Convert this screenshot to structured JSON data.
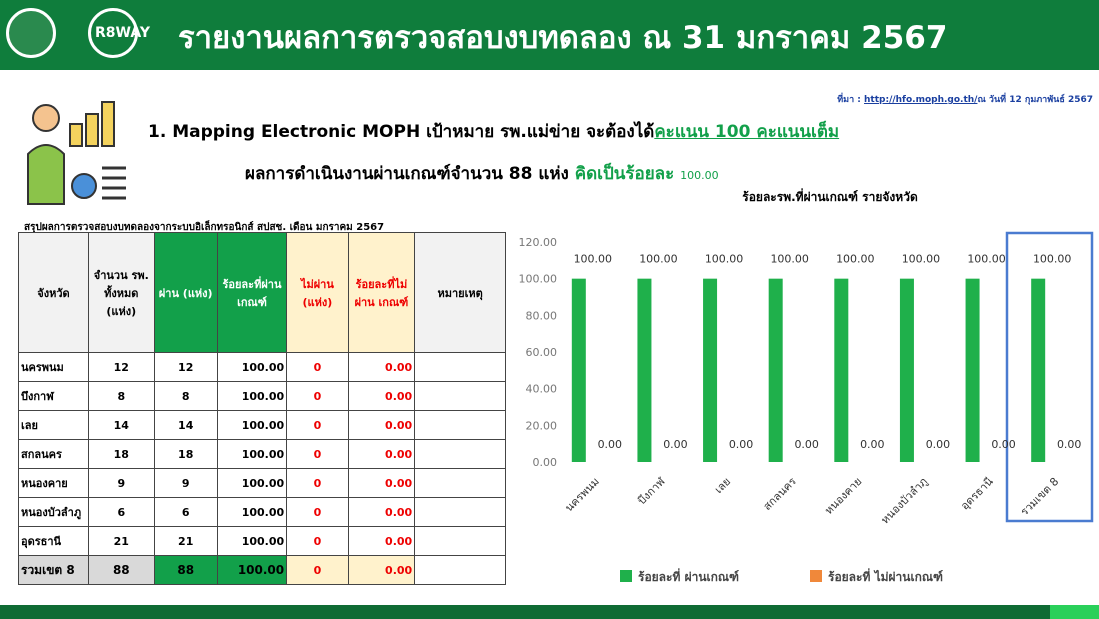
{
  "header": {
    "logo_text": "R8WAY",
    "title": "รายงานผลการตรวจสอบงบทดลอง ณ 31 มกราคม 2567"
  },
  "source": {
    "label": "ที่มา : ",
    "url": "http://hfo.moph.go.th/",
    "date": "ณ วันที่ 12 กุมภาพันธ์ 2567"
  },
  "headline": {
    "line1": "1. Mapping Electronic MOPH เป้าหมาย รพ.แม่ข่าย จะต้องได้",
    "line1_emphasis": "คะแนน 100 คะแนนเต็ม",
    "line2": "ผลการดำเนินงานผ่านเกณฑ์จำนวน 88 แห่ง",
    "line2_emphasis": "คิดเป็นร้อยละ",
    "line2_value": "100.00"
  },
  "table": {
    "title": "สรุปผลการตรวจสอบงบทดลองจากระบบอิเล็กทรอนิกส์ สปสช. เดือน มกราคม 2567",
    "headers": [
      "จังหวัด",
      "จำนวน รพ. ทั้งหมด (แห่ง)",
      "ผ่าน (แห่ง)",
      "ร้อยละที่ผ่านเกณฑ์",
      "ไม่ผ่าน (แห่ง)",
      "ร้อยละที่ไม่ผ่าน เกณฑ์",
      "หมายเหตุ"
    ],
    "rows": [
      [
        "นครพนม",
        "12",
        "12",
        "100.00",
        "0",
        "0.00"
      ],
      [
        "บึงกาฬ",
        "8",
        "8",
        "100.00",
        "0",
        "0.00"
      ],
      [
        "เลย",
        "14",
        "14",
        "100.00",
        "0",
        "0.00"
      ],
      [
        "สกลนคร",
        "18",
        "18",
        "100.00",
        "0",
        "0.00"
      ],
      [
        "หนองคาย",
        "9",
        "9",
        "100.00",
        "0",
        "0.00"
      ],
      [
        "หนองบัวลำภู",
        "6",
        "6",
        "100.00",
        "0",
        "0.00"
      ],
      [
        "อุดรธานี",
        "21",
        "21",
        "100.00",
        "0",
        "0.00"
      ],
      [
        "รวมเขต 8",
        "88",
        "88",
        "100.00",
        "0",
        "0.00"
      ]
    ]
  },
  "chart_data": {
    "type": "bar",
    "title": "ร้อยละรพ.ที่ผ่านเกณฑ์ รายจังหวัด",
    "categories": [
      "นครพนม",
      "บึงกาฬ",
      "เลย",
      "สกลนคร",
      "หนองคาย",
      "หนองบัวลำภู",
      "อุดรธานี",
      "รวมเขต 8"
    ],
    "series": [
      {
        "name": "ร้อยละที่ ผ่านเกณฑ์",
        "color": "#1fb04b",
        "values": [
          100,
          100,
          100,
          100,
          100,
          100,
          100,
          100
        ],
        "value_labels": [
          "100.00",
          "100.00",
          "100.00",
          "100.00",
          "100.00",
          "100.00",
          "100.00",
          "100.00"
        ]
      },
      {
        "name": "ร้อยละที่ ไม่ผ่านเกณฑ์",
        "color": "#f0883a",
        "values": [
          0,
          0,
          0,
          0,
          0,
          0,
          0,
          0
        ],
        "value_labels": [
          "0.00",
          "0.00",
          "0.00",
          "0.00",
          "0.00",
          "0.00",
          "0.00",
          "0.00"
        ]
      }
    ],
    "ylim": [
      0,
      120
    ],
    "yticks": [
      {
        "value": 0,
        "label": "0.00"
      },
      {
        "value": 20,
        "label": "20.00"
      },
      {
        "value": 40,
        "label": "40.00"
      },
      {
        "value": 60,
        "label": "60.00"
      },
      {
        "value": 80,
        "label": "80.00"
      },
      {
        "value": 100,
        "label": "100.00"
      },
      {
        "value": 120,
        "label": "120.00"
      }
    ],
    "grid": false,
    "legend": "bottom"
  }
}
